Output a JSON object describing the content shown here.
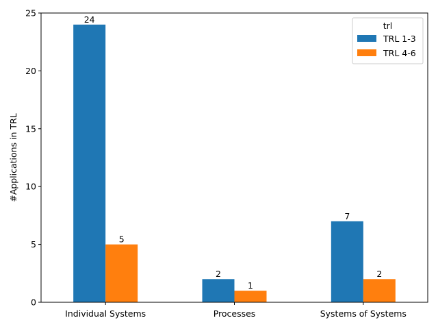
{
  "chart_data": {
    "type": "bar",
    "categories": [
      "Individual Systems",
      "Processes",
      "Systems of Systems"
    ],
    "series": [
      {
        "name": "TRL 1-3",
        "values": [
          24,
          2,
          7
        ],
        "color": "#1f77b4"
      },
      {
        "name": "TRL 4-6",
        "values": [
          5,
          1,
          2
        ],
        "color": "#ff7f0e"
      }
    ],
    "xlabel": "",
    "ylabel": "#Applications in TRL",
    "ylim": [
      0,
      25
    ],
    "yticks": [
      "0",
      "5",
      "10",
      "15",
      "20",
      "25"
    ],
    "legend": {
      "title": "trl",
      "position": "top-right"
    },
    "grid": false
  }
}
